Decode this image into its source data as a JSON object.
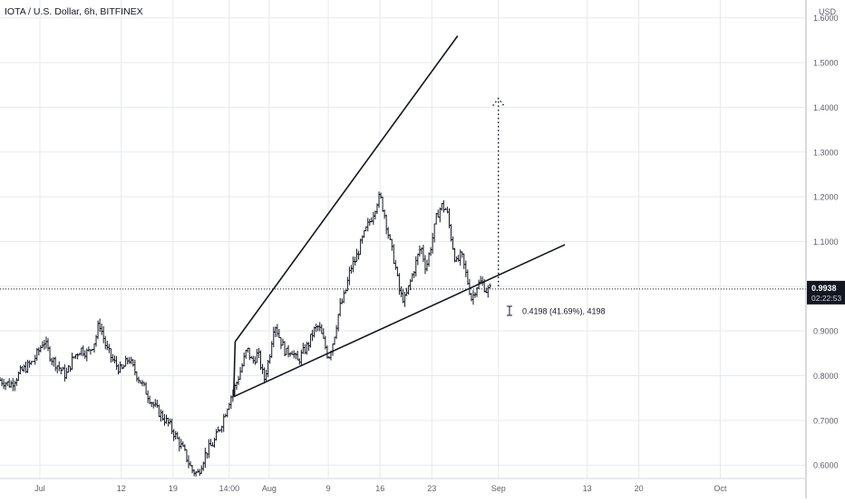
{
  "chart_data": {
    "type": "candlestick",
    "title": "IOTA / U.S. Dollar, 6h, BITFINEX",
    "currency": "USD",
    "y_ticks": [
      "0.6000",
      "0.7000",
      "0.8000",
      "0.9000",
      "1.0000",
      "1.1000",
      "1.2000",
      "1.3000",
      "1.4000",
      "1.5000",
      "1.6000"
    ],
    "y_tick_values": [
      0.6,
      0.7,
      0.8,
      0.9,
      1.0,
      1.1,
      1.2,
      1.3,
      1.4,
      1.5,
      1.6
    ],
    "ylim": [
      0.57,
      1.64
    ],
    "x_ticks": [
      {
        "label": "Jul",
        "day": 0
      },
      {
        "label": "12",
        "day": 11
      },
      {
        "label": "19",
        "day": 18
      },
      {
        "label": "14:00",
        "day": 25.6
      },
      {
        "label": "Aug",
        "day": 31
      },
      {
        "label": "9",
        "day": 39
      },
      {
        "label": "16",
        "day": 46
      },
      {
        "label": "23",
        "day": 53
      },
      {
        "label": "Sep",
        "day": 62
      },
      {
        "label": "13",
        "day": 74
      },
      {
        "label": "20",
        "day": 81
      },
      {
        "label": "Oct",
        "day": 92
      }
    ],
    "xlim": [
      -5.4,
      103.6
    ],
    "last_price": "0.9938",
    "last_price_value": 0.9938,
    "countdown": "02:22:53",
    "measure_label": "0.4198 (41.69%), 4198",
    "grid": true,
    "colors": {
      "line": "#131722",
      "grid": "#e6e9ef",
      "axis_text": "#5d606b",
      "price_badge": "#131722"
    },
    "price_path": [
      [
        -5.4,
        0.79
      ],
      [
        -4,
        0.78
      ],
      [
        -2.5,
        0.81
      ],
      [
        -1,
        0.83
      ],
      [
        0,
        0.86
      ],
      [
        0.5,
        0.88
      ],
      [
        1.5,
        0.84
      ],
      [
        2.5,
        0.82
      ],
      [
        3.5,
        0.8
      ],
      [
        4.5,
        0.84
      ],
      [
        5.5,
        0.86
      ],
      [
        6.5,
        0.85
      ],
      [
        7.5,
        0.88
      ],
      [
        8,
        0.92
      ],
      [
        9,
        0.86
      ],
      [
        10,
        0.83
      ],
      [
        11,
        0.81
      ],
      [
        12,
        0.84
      ],
      [
        12.5,
        0.82
      ],
      [
        13.5,
        0.79
      ],
      [
        14.5,
        0.76
      ],
      [
        15.5,
        0.73
      ],
      [
        16.5,
        0.71
      ],
      [
        17.5,
        0.69
      ],
      [
        18.5,
        0.66
      ],
      [
        19.5,
        0.63
      ],
      [
        20.5,
        0.59
      ],
      [
        21.3,
        0.58
      ],
      [
        22.5,
        0.63
      ],
      [
        23.5,
        0.65
      ],
      [
        24.5,
        0.69
      ],
      [
        25.5,
        0.74
      ],
      [
        26.5,
        0.78
      ],
      [
        27.3,
        0.82
      ],
      [
        28,
        0.86
      ],
      [
        28.7,
        0.83
      ],
      [
        29.5,
        0.85
      ],
      [
        30.3,
        0.79
      ],
      [
        31,
        0.84
      ],
      [
        31.7,
        0.92
      ],
      [
        32.5,
        0.88
      ],
      [
        33.3,
        0.85
      ],
      [
        34,
        0.86
      ],
      [
        34.8,
        0.83
      ],
      [
        35.5,
        0.85
      ],
      [
        36.3,
        0.87
      ],
      [
        37,
        0.9
      ],
      [
        37.7,
        0.91
      ],
      [
        38.5,
        0.87
      ],
      [
        39,
        0.84
      ],
      [
        39.7,
        0.88
      ],
      [
        40.5,
        0.95
      ],
      [
        41.2,
        0.98
      ],
      [
        42,
        1.04
      ],
      [
        42.7,
        1.06
      ],
      [
        43.5,
        1.1
      ],
      [
        44.2,
        1.13
      ],
      [
        45,
        1.16
      ],
      [
        45.6,
        1.19
      ],
      [
        46,
        1.2
      ],
      [
        46.6,
        1.16
      ],
      [
        47.3,
        1.1
      ],
      [
        48,
        1.05
      ],
      [
        48.7,
        0.98
      ],
      [
        49.4,
        0.97
      ],
      [
        50.1,
        1.01
      ],
      [
        50.8,
        1.05
      ],
      [
        51.5,
        1.09
      ],
      [
        52.2,
        1.04
      ],
      [
        53,
        1.1
      ],
      [
        53.7,
        1.16
      ],
      [
        54.3,
        1.18
      ],
      [
        55,
        1.17
      ],
      [
        55.6,
        1.11
      ],
      [
        56.3,
        1.05
      ],
      [
        57,
        1.07
      ],
      [
        57.7,
        1.02
      ],
      [
        58.4,
        0.97
      ],
      [
        59,
        1.0
      ],
      [
        59.7,
        1.01
      ],
      [
        60.4,
        0.99
      ],
      [
        61,
        0.9938
      ]
    ],
    "channel": {
      "upper": [
        [
          26.4,
          0.876
        ],
        [
          56.5,
          1.56
        ]
      ],
      "lower": [
        [
          26.2,
          0.753
        ],
        [
          71,
          1.093
        ]
      ]
    },
    "projection": {
      "x": 62,
      "y_from": 1.0,
      "y_to": 1.42
    },
    "measure_anchor": {
      "day": 63.5,
      "value": 0.945
    }
  }
}
